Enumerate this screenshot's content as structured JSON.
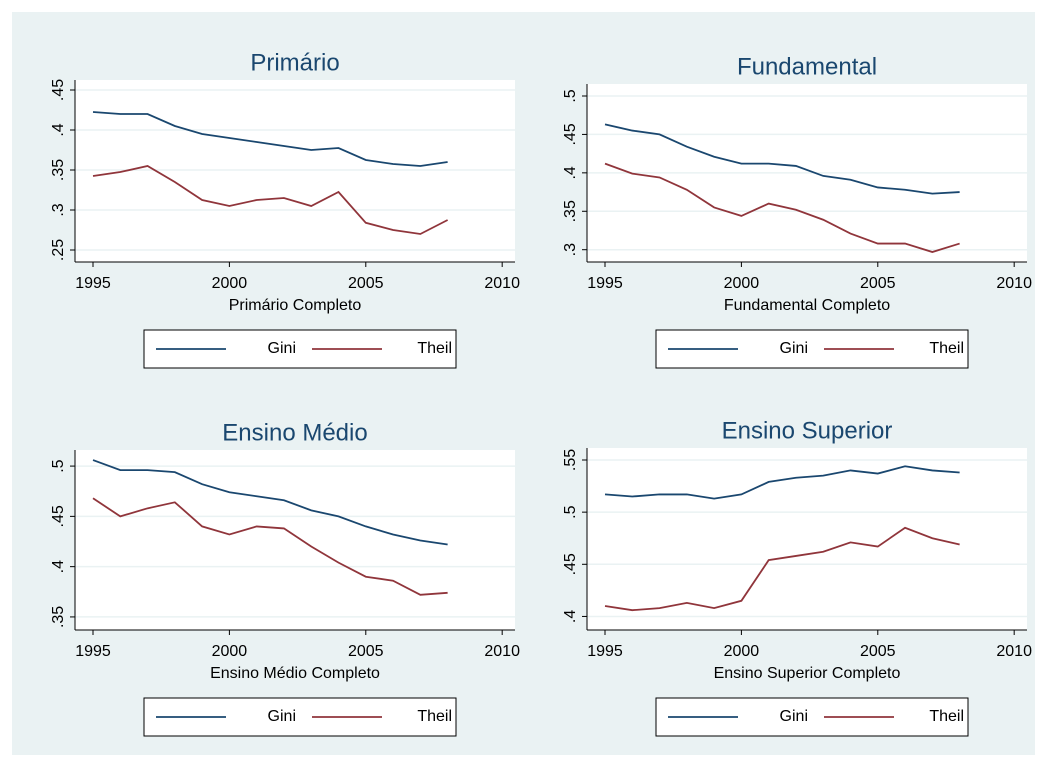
{
  "chart_data": [
    {
      "type": "line",
      "title": "Primário",
      "xlabel": "Primário Completo",
      "x": [
        1995,
        1996,
        1997,
        1998,
        1999,
        2000,
        2001,
        2002,
        2003,
        2004,
        2005,
        2006,
        2007,
        2008
      ],
      "series": [
        {
          "name": "Gini",
          "color": "#1a476f",
          "values": [
            0.4225,
            0.42,
            0.42,
            0.405,
            0.395,
            0.39,
            0.385,
            0.38,
            0.375,
            0.3775,
            0.3625,
            0.3575,
            0.355,
            0.36
          ]
        },
        {
          "name": "Theil",
          "color": "#90353b",
          "values": [
            0.3425,
            0.3475,
            0.355,
            0.335,
            0.3125,
            0.305,
            0.3125,
            0.315,
            0.305,
            0.3225,
            0.284,
            0.275,
            0.27,
            0.2875
          ]
        }
      ],
      "xlim": [
        1994.34,
        2010.47
      ],
      "xticks": [
        1995,
        2000,
        2005,
        2010
      ],
      "ylim": [
        0.235,
        0.4625
      ],
      "yticks": [
        {
          "value": 0.25,
          "label": ".25"
        },
        {
          "value": 0.3,
          "label": ".3"
        },
        {
          "value": 0.35,
          "label": ".35"
        },
        {
          "value": 0.4,
          "label": ".4"
        },
        {
          "value": 0.45,
          "label": ".45"
        }
      ],
      "grid": true,
      "legend": "bottom"
    },
    {
      "type": "line",
      "title": "Fundamental",
      "xlabel": "Fundamental Completo",
      "x": [
        1995,
        1996,
        1997,
        1998,
        1999,
        2000,
        2001,
        2002,
        2003,
        2004,
        2005,
        2006,
        2007,
        2008
      ],
      "series": [
        {
          "name": "Gini",
          "color": "#1a476f",
          "values": [
            0.463,
            0.455,
            0.45,
            0.434,
            0.421,
            0.412,
            0.412,
            0.409,
            0.396,
            0.391,
            0.381,
            0.378,
            0.373,
            0.375
          ]
        },
        {
          "name": "Theil",
          "color": "#90353b",
          "values": [
            0.412,
            0.399,
            0.394,
            0.378,
            0.355,
            0.344,
            0.36,
            0.352,
            0.339,
            0.321,
            0.308,
            0.308,
            0.297,
            0.308
          ]
        }
      ],
      "xlim": [
        1994.34,
        2010.47
      ],
      "xticks": [
        1995,
        2000,
        2005,
        2010
      ],
      "ylim": [
        0.284,
        0.5156
      ],
      "yticks": [
        {
          "value": 0.3,
          "label": ".3"
        },
        {
          "value": 0.35,
          "label": ".35"
        },
        {
          "value": 0.4,
          "label": ".4"
        },
        {
          "value": 0.45,
          "label": ".45"
        },
        {
          "value": 0.5,
          "label": ".5"
        }
      ],
      "grid": true,
      "legend": "bottom"
    },
    {
      "type": "line",
      "title": "Ensino Médio",
      "xlabel": "Ensino Médio Completo",
      "x": [
        1995,
        1996,
        1997,
        1998,
        1999,
        2000,
        2001,
        2002,
        2003,
        2004,
        2005,
        2006,
        2007,
        2008
      ],
      "series": [
        {
          "name": "Gini",
          "color": "#1a476f",
          "values": [
            0.506,
            0.496,
            0.496,
            0.494,
            0.482,
            0.474,
            0.47,
            0.466,
            0.456,
            0.45,
            0.44,
            0.432,
            0.426,
            0.422
          ]
        },
        {
          "name": "Theil",
          "color": "#90353b",
          "values": [
            0.468,
            0.45,
            0.458,
            0.464,
            0.44,
            0.432,
            0.44,
            0.438,
            0.42,
            0.404,
            0.39,
            0.386,
            0.372,
            0.374
          ]
        }
      ],
      "xlim": [
        1994.34,
        2010.47
      ],
      "xticks": [
        1995,
        2000,
        2005,
        2010
      ],
      "ylim": [
        0.337,
        0.516
      ],
      "yticks": [
        {
          "value": 0.35,
          "label": ".35"
        },
        {
          "value": 0.4,
          "label": ".4"
        },
        {
          "value": 0.45,
          "label": ".45"
        },
        {
          "value": 0.5,
          "label": ".5"
        }
      ],
      "grid": true,
      "legend": "bottom"
    },
    {
      "type": "line",
      "title": "Ensino Superior",
      "xlabel": "Ensino Superior Completo",
      "x": [
        1995,
        1996,
        1997,
        1998,
        1999,
        2000,
        2001,
        2002,
        2003,
        2004,
        2005,
        2006,
        2007,
        2008
      ],
      "series": [
        {
          "name": "Gini",
          "color": "#1a476f",
          "values": [
            0.517,
            0.515,
            0.517,
            0.517,
            0.513,
            0.517,
            0.529,
            0.533,
            0.535,
            0.54,
            0.537,
            0.544,
            0.54,
            0.538
          ]
        },
        {
          "name": "Theil",
          "color": "#90353b",
          "values": [
            0.41,
            0.406,
            0.408,
            0.413,
            0.408,
            0.415,
            0.454,
            0.458,
            0.462,
            0.471,
            0.467,
            0.485,
            0.475,
            0.469
          ]
        }
      ],
      "xlim": [
        1994.34,
        2010.47
      ],
      "xticks": [
        1995,
        2000,
        2005,
        2010
      ],
      "ylim": [
        0.387,
        0.5615
      ],
      "yticks": [
        {
          "value": 0.4,
          "label": ".4"
        },
        {
          "value": 0.45,
          "label": ".45"
        },
        {
          "value": 0.5,
          "label": ".5"
        },
        {
          "value": 0.55,
          "label": ".55"
        }
      ],
      "grid": true,
      "legend": "bottom"
    }
  ]
}
